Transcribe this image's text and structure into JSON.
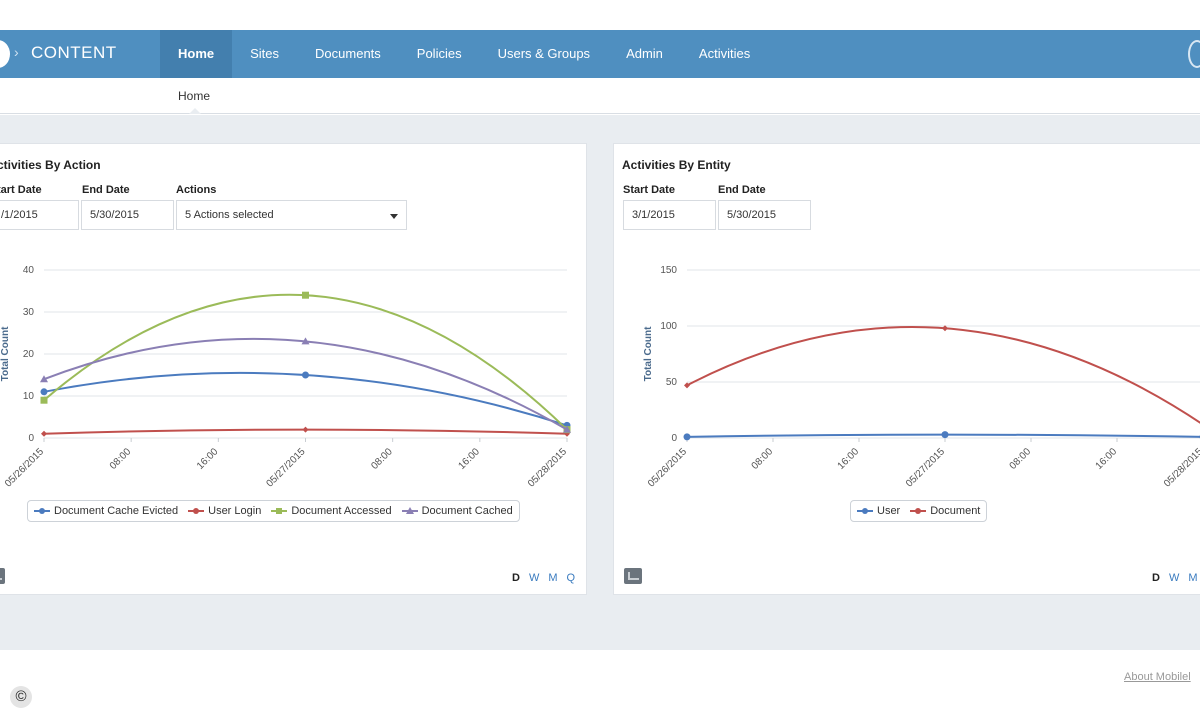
{
  "app": {
    "name": "CONTENT"
  },
  "nav": {
    "items": [
      "Home",
      "Sites",
      "Documents",
      "Policies",
      "Users & Groups",
      "Admin",
      "Activities"
    ],
    "active_index": 0
  },
  "breadcrumb": {
    "label": "Home"
  },
  "panels": {
    "by_action": {
      "title": "ctivities By Action",
      "start_label": "tart Date",
      "start_value": "/1/2015",
      "end_label": "End Date",
      "end_value": "5/30/2015",
      "actions_label": "Actions",
      "actions_value": "5 Actions selected",
      "periods": [
        "D",
        "W",
        "M",
        "Q"
      ],
      "active_period": "D"
    },
    "by_entity": {
      "title": "Activities By Entity",
      "start_label": "Start Date",
      "start_value": "3/1/2015",
      "end_label": "End Date",
      "end_value": "5/30/2015",
      "periods": [
        "D",
        "W",
        "M"
      ],
      "active_period": "D"
    }
  },
  "footer": {
    "about_label": "About Mobilel",
    "copyright_symbol": "©"
  },
  "colors": {
    "nav_bg": "#4f8fc0",
    "nav_active": "#437fae",
    "link": "#3a7bbf"
  },
  "icons": {
    "export": "chart-export-icon",
    "dropdown": "caret-down-icon",
    "logo": "brand-logo-icon"
  },
  "chart_data": [
    {
      "type": "line",
      "title": "ctivities By Action",
      "ylabel": "Total Count",
      "xlabel": "",
      "ylim": [
        0,
        40
      ],
      "yticks": [
        0,
        10,
        20,
        30,
        40
      ],
      "x_tick_labels": [
        "05/26/2015",
        "08:00",
        "16:00",
        "05/27/2015",
        "08:00",
        "16:00",
        "05/28/2015"
      ],
      "grid": true,
      "legend": "bottom",
      "series": [
        {
          "name": "Document Cache Evicted",
          "color": "#4b7bbf",
          "marker": "circle",
          "values": [
            11,
            15,
            3
          ]
        },
        {
          "name": "User Login",
          "color": "#c0504d",
          "marker": "diamond",
          "values": [
            1,
            2,
            1
          ]
        },
        {
          "name": "Document Accessed",
          "color": "#9bbb59",
          "marker": "square",
          "values": [
            9,
            34,
            2
          ]
        },
        {
          "name": "Document Cached",
          "color": "#8a7fb4",
          "marker": "triangle",
          "values": [
            14,
            23,
            2
          ]
        }
      ]
    },
    {
      "type": "line",
      "title": "Activities By Entity",
      "ylabel": "Total Count",
      "xlabel": "",
      "ylim": [
        0,
        150
      ],
      "yticks": [
        0,
        50,
        100,
        150
      ],
      "x_tick_labels": [
        "05/26/2015",
        "08:00",
        "16:00",
        "05/27/2015",
        "08:00",
        "16:00",
        "05/28/2015"
      ],
      "grid": true,
      "legend": "bottom",
      "series": [
        {
          "name": "User",
          "color": "#4b7bbf",
          "marker": "circle",
          "values": [
            1,
            3,
            1
          ]
        },
        {
          "name": "Document",
          "color": "#c0504d",
          "marker": "diamond",
          "values": [
            47,
            98,
            12
          ]
        }
      ]
    }
  ]
}
